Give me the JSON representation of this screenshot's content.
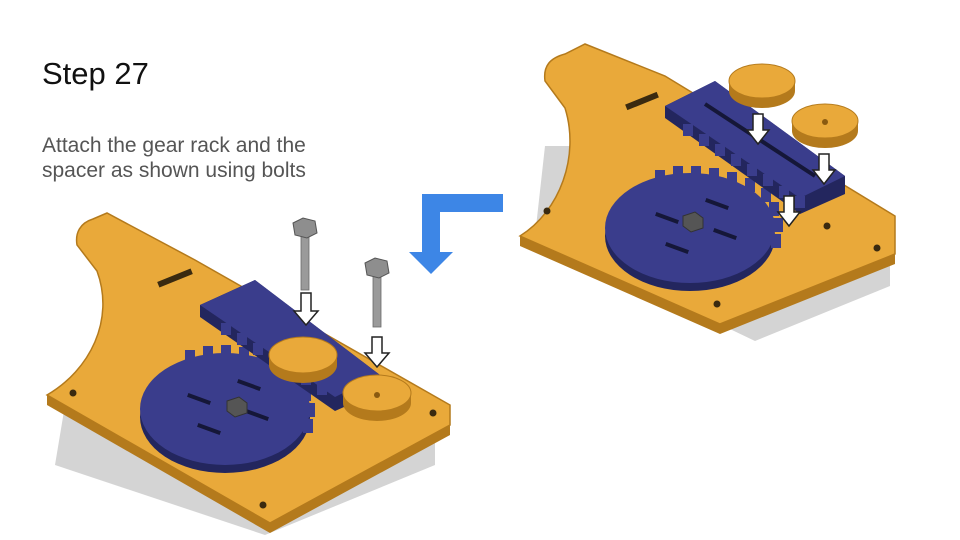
{
  "slide": {
    "title": "Step 27",
    "instruction": "Attach the gear rack and the\nspacer as shown using bolts"
  },
  "colors": {
    "plate": "#E9A93A",
    "plate_edge": "#B47A1C",
    "gear_rack": "#3A3D8C",
    "gear_rack_edge": "#23265E",
    "spacer": "#E9A93A",
    "bolt": "#8E8E8E",
    "shadow": "#D4D4D4",
    "transition_arrow": "#3D86E6",
    "insert_arrow": "#FFFFFF"
  },
  "icons": {
    "transition": "l-shaped-arrow-down-left-icon",
    "insert": "down-arrow-outline-icon"
  }
}
